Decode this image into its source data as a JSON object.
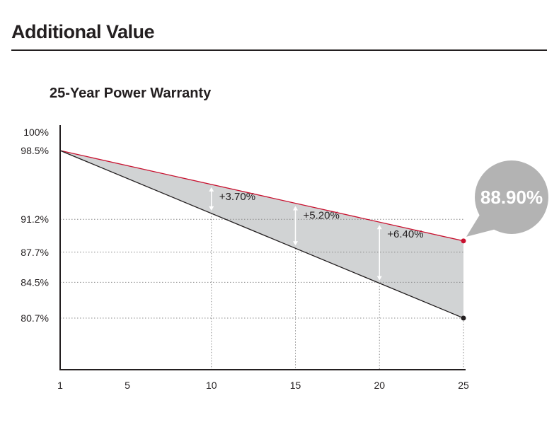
{
  "header": {
    "title": "Additional Value"
  },
  "chart_data": {
    "type": "line",
    "title": "25-Year Power Warranty",
    "xlabel": "",
    "ylabel": "",
    "x_ticks": [
      1,
      5,
      10,
      15,
      20,
      25
    ],
    "y_ticks": [
      "100%",
      "98.5%",
      "91.2%",
      "87.7%",
      "84.5%",
      "80.7%"
    ],
    "y_tick_values": [
      100,
      98.5,
      91.2,
      87.7,
      84.5,
      80.7
    ],
    "grid_y_values": [
      91.2,
      87.7,
      84.5,
      80.7
    ],
    "grid_x_values": [
      10,
      15,
      20,
      25
    ],
    "series": [
      {
        "color": "#c8102e",
        "points": [
          [
            1,
            98.5
          ],
          [
            25,
            88.9
          ]
        ]
      },
      {
        "color": "#231f20",
        "points": [
          [
            1,
            98.5
          ],
          [
            25,
            80.7
          ]
        ]
      }
    ],
    "fill_color": "#d1d3d4",
    "annotations": [
      {
        "x": 10,
        "text": "+3.70%"
      },
      {
        "x": 15,
        "text": "+5.20%"
      },
      {
        "x": 20,
        "text": "+6.40%"
      }
    ],
    "callout": {
      "text": "88.90%",
      "x": 25,
      "y": 88.9,
      "color": "#b3b3b3"
    }
  }
}
